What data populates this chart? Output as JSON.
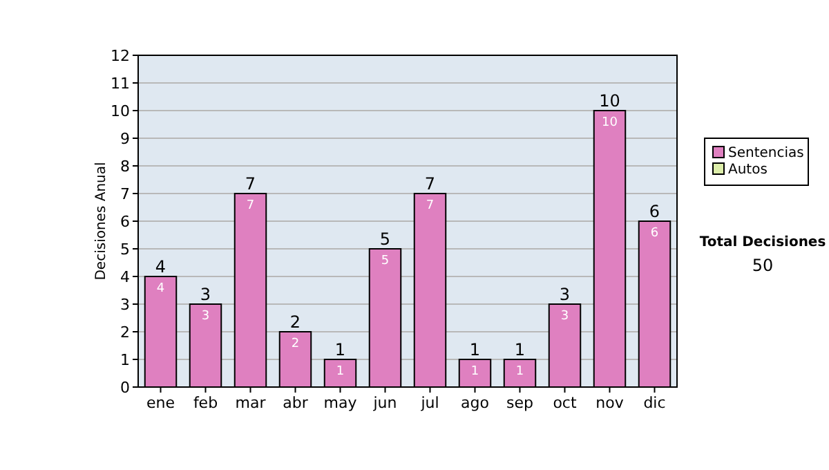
{
  "chart_data": {
    "type": "bar",
    "stacked": true,
    "ylabel": "Decisiones Anual",
    "categories": [
      "ene",
      "feb",
      "mar",
      "abr",
      "may",
      "jun",
      "jul",
      "ago",
      "sep",
      "oct",
      "nov",
      "dic"
    ],
    "series": [
      {
        "name": "Sentencias",
        "color": "#df80c0",
        "values": [
          4,
          3,
          7,
          2,
          1,
          5,
          7,
          1,
          1,
          3,
          10,
          6
        ],
        "value_labels": [
          "4",
          "3",
          "7",
          "2",
          "1",
          "5",
          "7",
          "1",
          "1",
          "3",
          "10",
          "6"
        ]
      },
      {
        "name": "Autos",
        "color": "#ddeeaa",
        "values": [
          0,
          0,
          0,
          0,
          0,
          0,
          0,
          0,
          0,
          0,
          0,
          0
        ]
      }
    ],
    "totals": [
      "4",
      "3",
      "7",
      "2",
      "1",
      "5",
      "7",
      "1",
      "1",
      "3",
      "10",
      "6"
    ],
    "ylim": [
      0,
      12
    ],
    "yticks": [
      0,
      1,
      2,
      3,
      4,
      5,
      6,
      7,
      8,
      9,
      10,
      11,
      12
    ],
    "grid": "y",
    "legend": "right",
    "annotations": [
      "Total Decisiones",
      "50"
    ]
  }
}
